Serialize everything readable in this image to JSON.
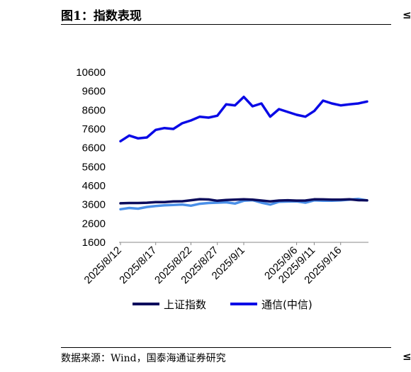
{
  "header": {
    "figure_title": "图1：指数表现",
    "corner_glyph_top": "≤",
    "corner_glyph_bottom": "≤"
  },
  "footer": {
    "source": "数据来源：Wind，国泰海通证券研究"
  },
  "chart_data": {
    "type": "line",
    "title": "",
    "xlabel": "",
    "ylabel": "",
    "ylim": [
      1600,
      10600
    ],
    "yticks": [
      1600,
      2600,
      3600,
      4600,
      5600,
      6600,
      7600,
      8600,
      9600,
      10600
    ],
    "x": [
      "2025/8/12",
      "2025/8/13",
      "2025/8/14",
      "2025/8/15",
      "2025/8/18",
      "2025/8/19",
      "2025/8/20",
      "2025/8/21",
      "2025/8/22",
      "2025/8/25",
      "2025/8/26",
      "2025/8/27",
      "2025/8/28",
      "2025/8/29",
      "2025/9/1",
      "2025/9/2",
      "2025/9/3",
      "2025/9/4",
      "2025/9/5",
      "2025/9/8",
      "2025/9/9",
      "2025/9/10",
      "2025/9/11",
      "2025/9/12",
      "2025/9/15",
      "2025/9/16",
      "2025/9/17",
      "2025/9/18",
      "2025/9/19"
    ],
    "xticks": [
      "2025/8/12",
      "2025/8/17",
      "2025/8/22",
      "2025/8/27",
      "2025/9/1",
      "2025/9/6",
      "2025/9/11",
      "2025/9/16"
    ],
    "grid": false,
    "legend_position": "bottom",
    "series": [
      {
        "name": "上证指数",
        "color": "#0b0b5c",
        "values": [
          3665,
          3683,
          3680,
          3697,
          3728,
          3727,
          3766,
          3771,
          3826,
          3884,
          3868,
          3800,
          3843,
          3858,
          3876,
          3858,
          3814,
          3766,
          3813,
          3826,
          3807,
          3812,
          3875,
          3871,
          3860,
          3862,
          3876,
          3832,
          3820
        ]
      },
      {
        "name": "通信(中信)",
        "color": "#0a0ae6",
        "values": [
          6950,
          7250,
          7100,
          7150,
          7550,
          7650,
          7600,
          7900,
          8050,
          8250,
          8200,
          8300,
          8900,
          8850,
          9300,
          8800,
          8950,
          8250,
          8650,
          8500,
          8350,
          8250,
          8550,
          9100,
          8950,
          8850,
          8900,
          8950,
          9050
        ]
      },
      {
        "name": "",
        "color": "#4a8fe8",
        "values": [
          3350,
          3420,
          3380,
          3470,
          3520,
          3560,
          3580,
          3600,
          3540,
          3640,
          3680,
          3700,
          3720,
          3650,
          3800,
          3830,
          3700,
          3600,
          3750,
          3760,
          3770,
          3700,
          3820,
          3800,
          3800,
          3820,
          3860,
          3900,
          3820
        ]
      }
    ]
  }
}
